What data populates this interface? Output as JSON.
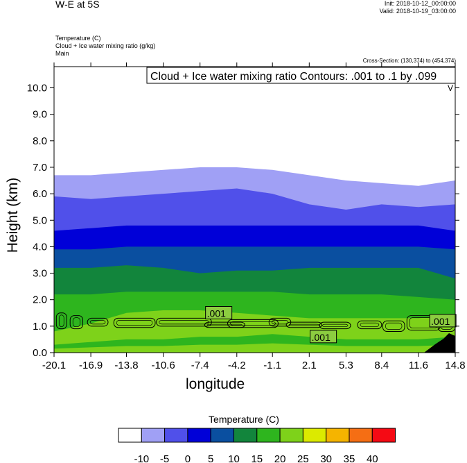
{
  "header": {
    "title": "W-E at 5S",
    "init": "Init: 2018-10-12_00:00:00",
    "valid": "Valid: 2018-10-19_03:00:00",
    "field_line1": "Temperature   (C)",
    "field_line2": "Cloud + Ice water mixing ratio   (g/kg)",
    "field_line3": "Main",
    "cross_section": "Cross-Section: (130,374) to (454,374)"
  },
  "chart_data": {
    "type": "area",
    "title": "W-E at 5S",
    "xlabel": "longitude",
    "ylabel": "Height (km)",
    "xlim": [
      -20.1,
      14.8
    ],
    "ylim": [
      0.0,
      10.8
    ],
    "x_ticks": [
      "-20.1",
      "-16.9",
      "-13.8",
      "-10.6",
      "-7.4",
      "-4.2",
      "-1.1",
      "2.1",
      "5.3",
      "8.4",
      "11.6",
      "14.8"
    ],
    "y_ticks": [
      "0.0",
      "1.0",
      "2.0",
      "3.0",
      "4.0",
      "5.0",
      "6.0",
      "7.0",
      "8.0",
      "9.0",
      "10.0"
    ],
    "contour_note": "Cloud + Ice water mixing ratio Contours: .001 to .1 by .099",
    "contour_corner_mark": "V",
    "contour_labels": [
      ".001",
      ".001",
      ".001"
    ],
    "temperature_levels": [
      -10,
      -5,
      0,
      5,
      10,
      15,
      20,
      25,
      30,
      35,
      40
    ],
    "temperature_colors": [
      "#ffffff",
      "#a0a0f5",
      "#5050ea",
      "#0000d8",
      "#0a4fa0",
      "#12853c",
      "#2eb51e",
      "#7ed21a",
      "#dcea00",
      "#f5b400",
      "#f56e14",
      "#f50a14"
    ],
    "isotherm_heights_km": {
      "lon": [
        -20.1,
        -16.9,
        -13.8,
        -10.6,
        -7.4,
        -4.2,
        -1.1,
        2.1,
        5.3,
        8.4,
        11.6,
        14.8
      ],
      "minus10": [
        6.7,
        6.7,
        6.8,
        6.9,
        7.0,
        7.0,
        6.9,
        6.7,
        6.5,
        6.4,
        6.3,
        6.5
      ],
      "minus5": [
        5.9,
        5.8,
        5.9,
        6.0,
        6.1,
        6.2,
        6.0,
        5.6,
        5.4,
        5.6,
        5.5,
        5.6
      ],
      "zero": [
        4.6,
        4.7,
        4.8,
        4.8,
        4.8,
        4.8,
        4.8,
        4.8,
        4.8,
        4.8,
        4.8,
        4.6
      ],
      "five": [
        3.9,
        3.9,
        4.0,
        4.0,
        4.0,
        4.0,
        4.0,
        4.0,
        4.0,
        4.0,
        4.0,
        3.9
      ],
      "ten": [
        3.2,
        3.2,
        3.3,
        3.2,
        3.0,
        3.1,
        3.1,
        3.2,
        3.2,
        3.2,
        3.2,
        2.8
      ],
      "fifteen": [
        2.2,
        2.2,
        2.3,
        2.3,
        2.3,
        2.3,
        2.3,
        2.2,
        2.2,
        2.2,
        2.1,
        2.0
      ],
      "twenty": [
        0.8,
        1.1,
        1.5,
        1.6,
        1.6,
        1.5,
        1.4,
        1.3,
        1.3,
        1.3,
        1.3,
        1.4
      ],
      "twentyfive": [
        0.3,
        0.4,
        0.5,
        0.5,
        0.6,
        0.6,
        0.7,
        0.6,
        0.5,
        0.5,
        0.5,
        0.6
      ]
    }
  },
  "colorbar": {
    "title": "Temperature  (C)",
    "labels": [
      "-10",
      "-5",
      "0",
      "5",
      "10",
      "15",
      "20",
      "25",
      "30",
      "35",
      "40"
    ]
  }
}
